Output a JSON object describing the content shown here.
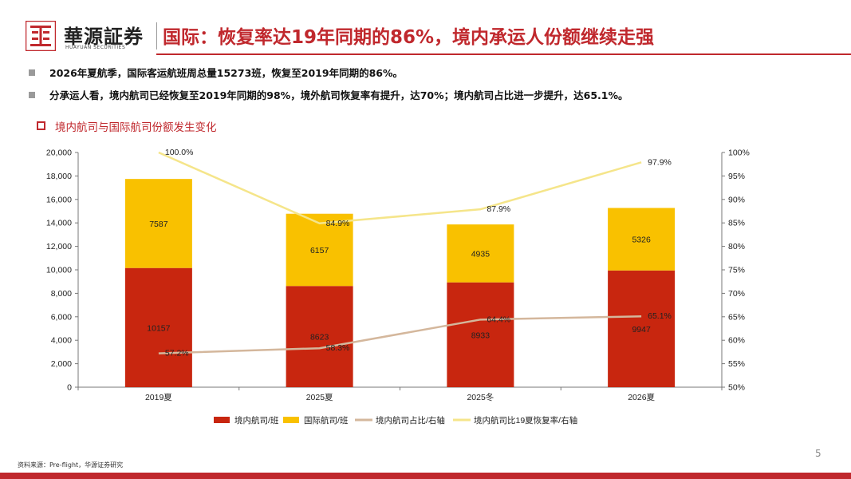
{
  "brand": {
    "name_cn": "華源証券",
    "name_en": "HUAYUAN SECURITIES"
  },
  "slide_title": "国际：恢复率达19年同期的86%，境内承运人份额继续走强",
  "bullets": [
    "2026年夏航季，国际客运航班周总量15273班，恢复至2019年同期的86%。",
    "分承运人看，境内航司已经恢复至2019年同期的98%，境外航司恢复率有提升，达70%；境内航司占比进一步提升，达65.1%。"
  ],
  "chart_title": "境内航司与国际航司份额发生变化",
  "colors": {
    "domestic": "#c8260f",
    "international": "#f9c100",
    "share_line": "#d4b79c",
    "recovery_line": "#f5e58a",
    "accent": "#c0282d"
  },
  "chart_data": {
    "type": "bar",
    "stacked": true,
    "categories": [
      "2019夏",
      "2025夏",
      "2025冬",
      "2026夏"
    ],
    "series": [
      {
        "name": "境内航司/班",
        "type": "bar",
        "axis": "left",
        "values": [
          10157,
          8623,
          8933,
          9947
        ],
        "labels": [
          "10157",
          "8623",
          "8933",
          "9947"
        ]
      },
      {
        "name": "国际航司/班",
        "type": "bar",
        "axis": "left",
        "values": [
          7587,
          6157,
          4935,
          5326
        ],
        "labels": [
          "7587",
          "6157",
          "4935",
          "5326"
        ]
      },
      {
        "name": "境内航司占比/右轴",
        "type": "line",
        "axis": "right",
        "values": [
          57.2,
          58.3,
          64.4,
          65.1
        ],
        "labels": [
          "57.2%",
          "58.3%",
          "64.4%",
          "65.1%"
        ]
      },
      {
        "name": "境内航司比19夏恢复率/右轴",
        "type": "line",
        "axis": "right",
        "values": [
          100.0,
          84.9,
          87.9,
          97.9
        ],
        "labels": [
          "100.0%",
          "84.9%",
          "87.9%",
          "97.9%"
        ]
      }
    ],
    "y_left": {
      "min": 0,
      "max": 20000,
      "step": 2000,
      "ticks": [
        "0",
        "2,000",
        "4,000",
        "6,000",
        "8,000",
        "10,000",
        "12,000",
        "14,000",
        "16,000",
        "18,000",
        "20,000"
      ]
    },
    "y_right": {
      "min": 50,
      "max": 100,
      "step": 5,
      "ticks": [
        "50%",
        "55%",
        "60%",
        "65%",
        "70%",
        "75%",
        "80%",
        "85%",
        "90%",
        "95%",
        "100%"
      ]
    },
    "legend_position": "bottom"
  },
  "footer": {
    "source": "资料来源：Pre-flight，华源证券研究",
    "page": "5"
  }
}
